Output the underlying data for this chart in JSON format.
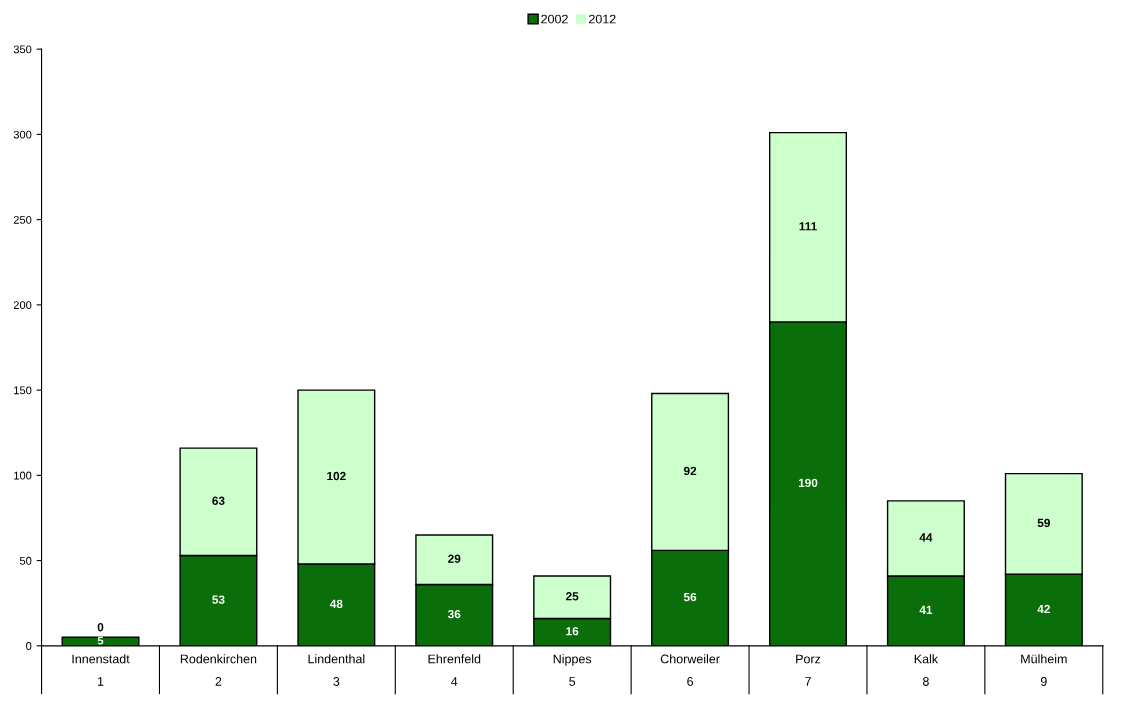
{
  "chart_data": {
    "type": "bar",
    "stacked": true,
    "categories": [
      "Innenstadt\n1",
      "Rodenkirchen\n2",
      "Lindenthal\n3",
      "Ehrenfeld\n4",
      "Nippes\n5",
      "Chorweiler\n6",
      "Porz\n7",
      "Kalk\n8",
      "Mülheim\n9"
    ],
    "series": [
      {
        "name": "2002",
        "color": "#0a6e0a",
        "values": [
          5,
          53,
          48,
          36,
          16,
          56,
          190,
          41,
          42
        ]
      },
      {
        "name": "2012",
        "color": "#ccffcc",
        "values": [
          0,
          63,
          102,
          29,
          25,
          92,
          111,
          44,
          59
        ]
      }
    ],
    "ylim": [
      0,
      350
    ],
    "yticks": [
      0,
      50,
      100,
      150,
      200,
      250,
      300,
      350
    ],
    "grid": false,
    "legend": "top",
    "data_labels": true
  }
}
